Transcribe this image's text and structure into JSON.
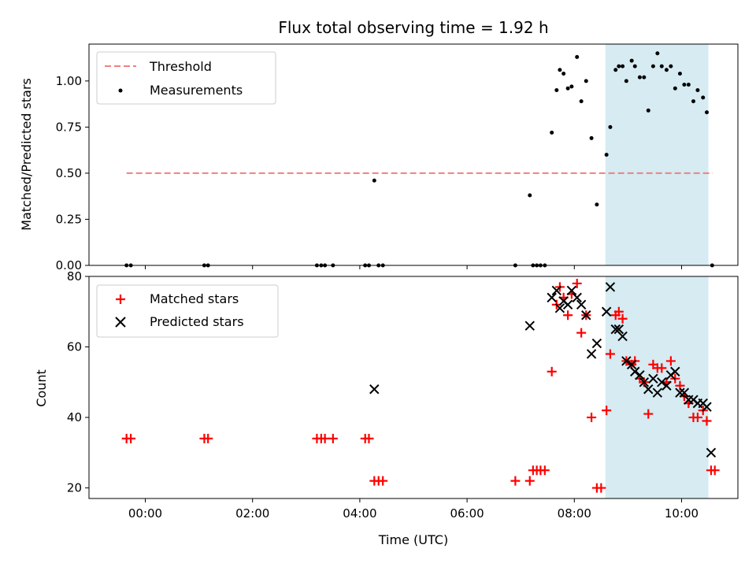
{
  "chart_data": [
    {
      "type": "scatter",
      "title": "Flux total observing time = 1.92 h",
      "xlabel": "",
      "ylabel": "Matched/Predicted stars",
      "xlim": [
        -1.05,
        11.05
      ],
      "ylim": [
        0,
        1.2
      ],
      "yticks": [
        0.0,
        0.25,
        0.5,
        0.75,
        1.0
      ],
      "ytick_labels": [
        "0.00",
        "0.25",
        "0.50",
        "0.75",
        "1.00"
      ],
      "highlight_span": [
        8.58,
        10.5
      ],
      "highlight_color": "#add8e6",
      "legend": [
        "Threshold",
        "Measurements"
      ],
      "threshold": {
        "name": "Threshold",
        "y": 0.5,
        "x_range": [
          -0.35,
          10.58
        ],
        "color": "#f08080"
      },
      "measurements": {
        "name": "Measurements",
        "color": "#000000",
        "x": [
          -0.35,
          -0.27,
          1.1,
          1.17,
          3.2,
          3.28,
          3.35,
          3.5,
          4.1,
          4.17,
          4.27,
          4.35,
          4.43,
          6.9,
          7.17,
          7.23,
          7.3,
          7.37,
          7.45,
          7.58,
          7.67,
          7.73,
          7.8,
          7.88,
          7.95,
          8.05,
          8.13,
          8.22,
          8.32,
          8.42,
          8.6,
          8.67,
          8.77,
          8.83,
          8.9,
          8.97,
          9.07,
          9.13,
          9.22,
          9.3,
          9.38,
          9.47,
          9.55,
          9.63,
          9.72,
          9.8,
          9.88,
          9.97,
          10.05,
          10.13,
          10.22,
          10.3,
          10.4,
          10.47,
          10.57
        ],
        "y": [
          0.0,
          0.0,
          0.0,
          0.0,
          0.0,
          0.0,
          0.0,
          0.0,
          0.0,
          0.0,
          0.46,
          0.0,
          0.0,
          0.0,
          0.38,
          0.0,
          0.0,
          0.0,
          0.0,
          0.72,
          0.95,
          1.06,
          1.04,
          0.96,
          0.97,
          1.13,
          0.89,
          1.0,
          0.69,
          0.33,
          0.6,
          0.75,
          1.06,
          1.08,
          1.08,
          1.0,
          1.11,
          1.08,
          1.02,
          1.02,
          0.84,
          1.08,
          1.15,
          1.08,
          1.06,
          1.08,
          0.96,
          1.04,
          0.98,
          0.98,
          0.89,
          0.95,
          0.91,
          0.83,
          0.0
        ]
      }
    },
    {
      "type": "scatter",
      "title": "",
      "xlabel": "Time (UTC)",
      "ylabel": "Count",
      "xlim": [
        -1.05,
        11.05
      ],
      "ylim": [
        17,
        80
      ],
      "xticks": [
        0,
        2,
        4,
        6,
        8,
        10
      ],
      "xtick_labels": [
        "00:00",
        "02:00",
        "04:00",
        "06:00",
        "08:00",
        "10:00"
      ],
      "yticks": [
        20,
        40,
        60,
        80
      ],
      "ytick_labels": [
        "20",
        "40",
        "60",
        "80"
      ],
      "highlight_span": [
        8.58,
        10.5
      ],
      "legend": [
        "Matched stars",
        "Predicted stars"
      ],
      "series": [
        {
          "name": "Matched stars",
          "marker": "+",
          "color": "#ff0000",
          "x": [
            -0.35,
            -0.27,
            1.1,
            1.17,
            3.2,
            3.28,
            3.35,
            3.5,
            4.1,
            4.17,
            4.27,
            4.35,
            4.43,
            6.9,
            7.17,
            7.23,
            7.3,
            7.37,
            7.45,
            7.58,
            7.67,
            7.73,
            7.8,
            7.88,
            7.95,
            8.05,
            8.13,
            8.22,
            8.32,
            8.42,
            8.5,
            8.6,
            8.67,
            8.77,
            8.83,
            8.9,
            8.97,
            9.07,
            9.13,
            9.22,
            9.3,
            9.38,
            9.47,
            9.55,
            9.63,
            9.72,
            9.8,
            9.88,
            9.97,
            10.05,
            10.13,
            10.22,
            10.3,
            10.4,
            10.47,
            10.55,
            10.62
          ],
          "y": [
            34,
            34,
            34,
            34,
            34,
            34,
            34,
            34,
            34,
            34,
            22,
            22,
            22,
            22,
            22,
            25,
            25,
            25,
            25,
            53,
            72,
            77,
            74,
            69,
            75,
            78,
            64,
            69,
            40,
            20,
            20,
            42,
            58,
            69,
            70,
            68,
            56,
            55,
            56,
            51,
            50,
            41,
            55,
            54,
            54,
            50,
            56,
            51,
            49,
            46,
            44,
            40,
            40,
            42,
            39,
            25,
            25
          ]
        },
        {
          "name": "Predicted stars",
          "marker": "x",
          "color": "#000000",
          "x": [
            4.27,
            7.17,
            7.58,
            7.67,
            7.73,
            7.8,
            7.88,
            7.95,
            8.05,
            8.13,
            8.22,
            8.32,
            8.42,
            8.6,
            8.67,
            8.77,
            8.83,
            8.9,
            8.97,
            9.07,
            9.13,
            9.22,
            9.3,
            9.38,
            9.47,
            9.55,
            9.63,
            9.72,
            9.8,
            9.88,
            9.97,
            10.05,
            10.13,
            10.22,
            10.3,
            10.4,
            10.47,
            10.55
          ],
          "y": [
            48,
            66,
            74,
            76,
            71,
            73,
            72,
            76,
            74,
            72,
            69,
            58,
            61,
            70,
            77,
            65,
            65,
            63,
            56,
            55,
            53,
            52,
            50,
            48,
            51,
            47,
            50,
            49,
            52,
            53,
            47,
            47,
            45,
            45,
            44,
            44,
            43,
            30
          ]
        }
      ]
    }
  ]
}
